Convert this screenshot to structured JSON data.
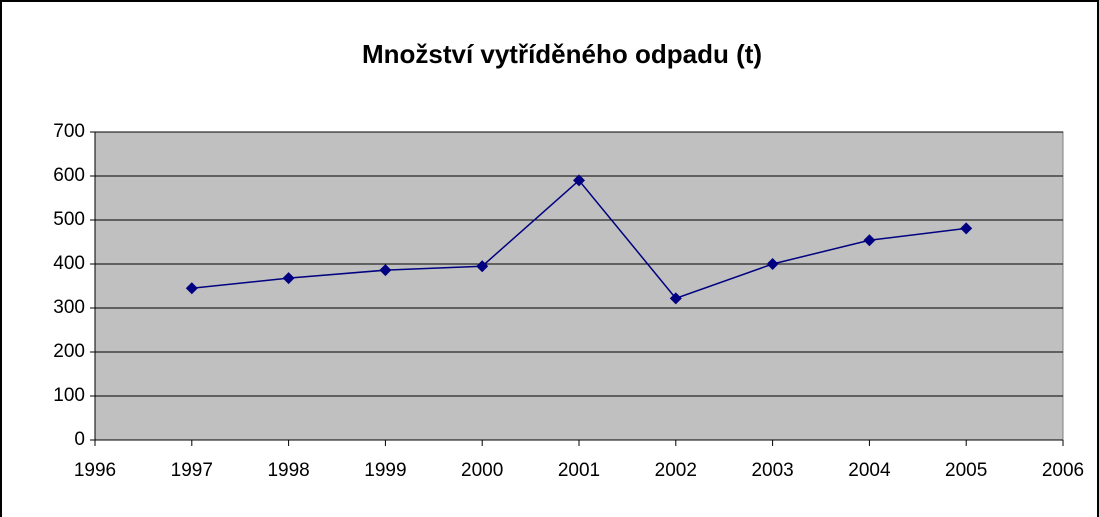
{
  "chart_data": {
    "type": "line",
    "title": "Množství vytříděného odpadu (t)",
    "x": [
      1997,
      1998,
      1999,
      2000,
      2001,
      2002,
      2003,
      2004,
      2005
    ],
    "series": [
      {
        "name": null,
        "color": "#000080",
        "values": [
          345,
          368,
          386,
          395,
          590,
          322,
          400,
          454,
          481
        ]
      }
    ],
    "xlim": [
      1996,
      2006
    ],
    "xticks": [
      1996,
      1997,
      1998,
      1999,
      2000,
      2001,
      2002,
      2003,
      2004,
      2005,
      2006
    ],
    "ylim": [
      0,
      700
    ],
    "yticks": [
      0,
      100,
      200,
      300,
      400,
      500,
      600,
      700
    ],
    "grid": true
  }
}
